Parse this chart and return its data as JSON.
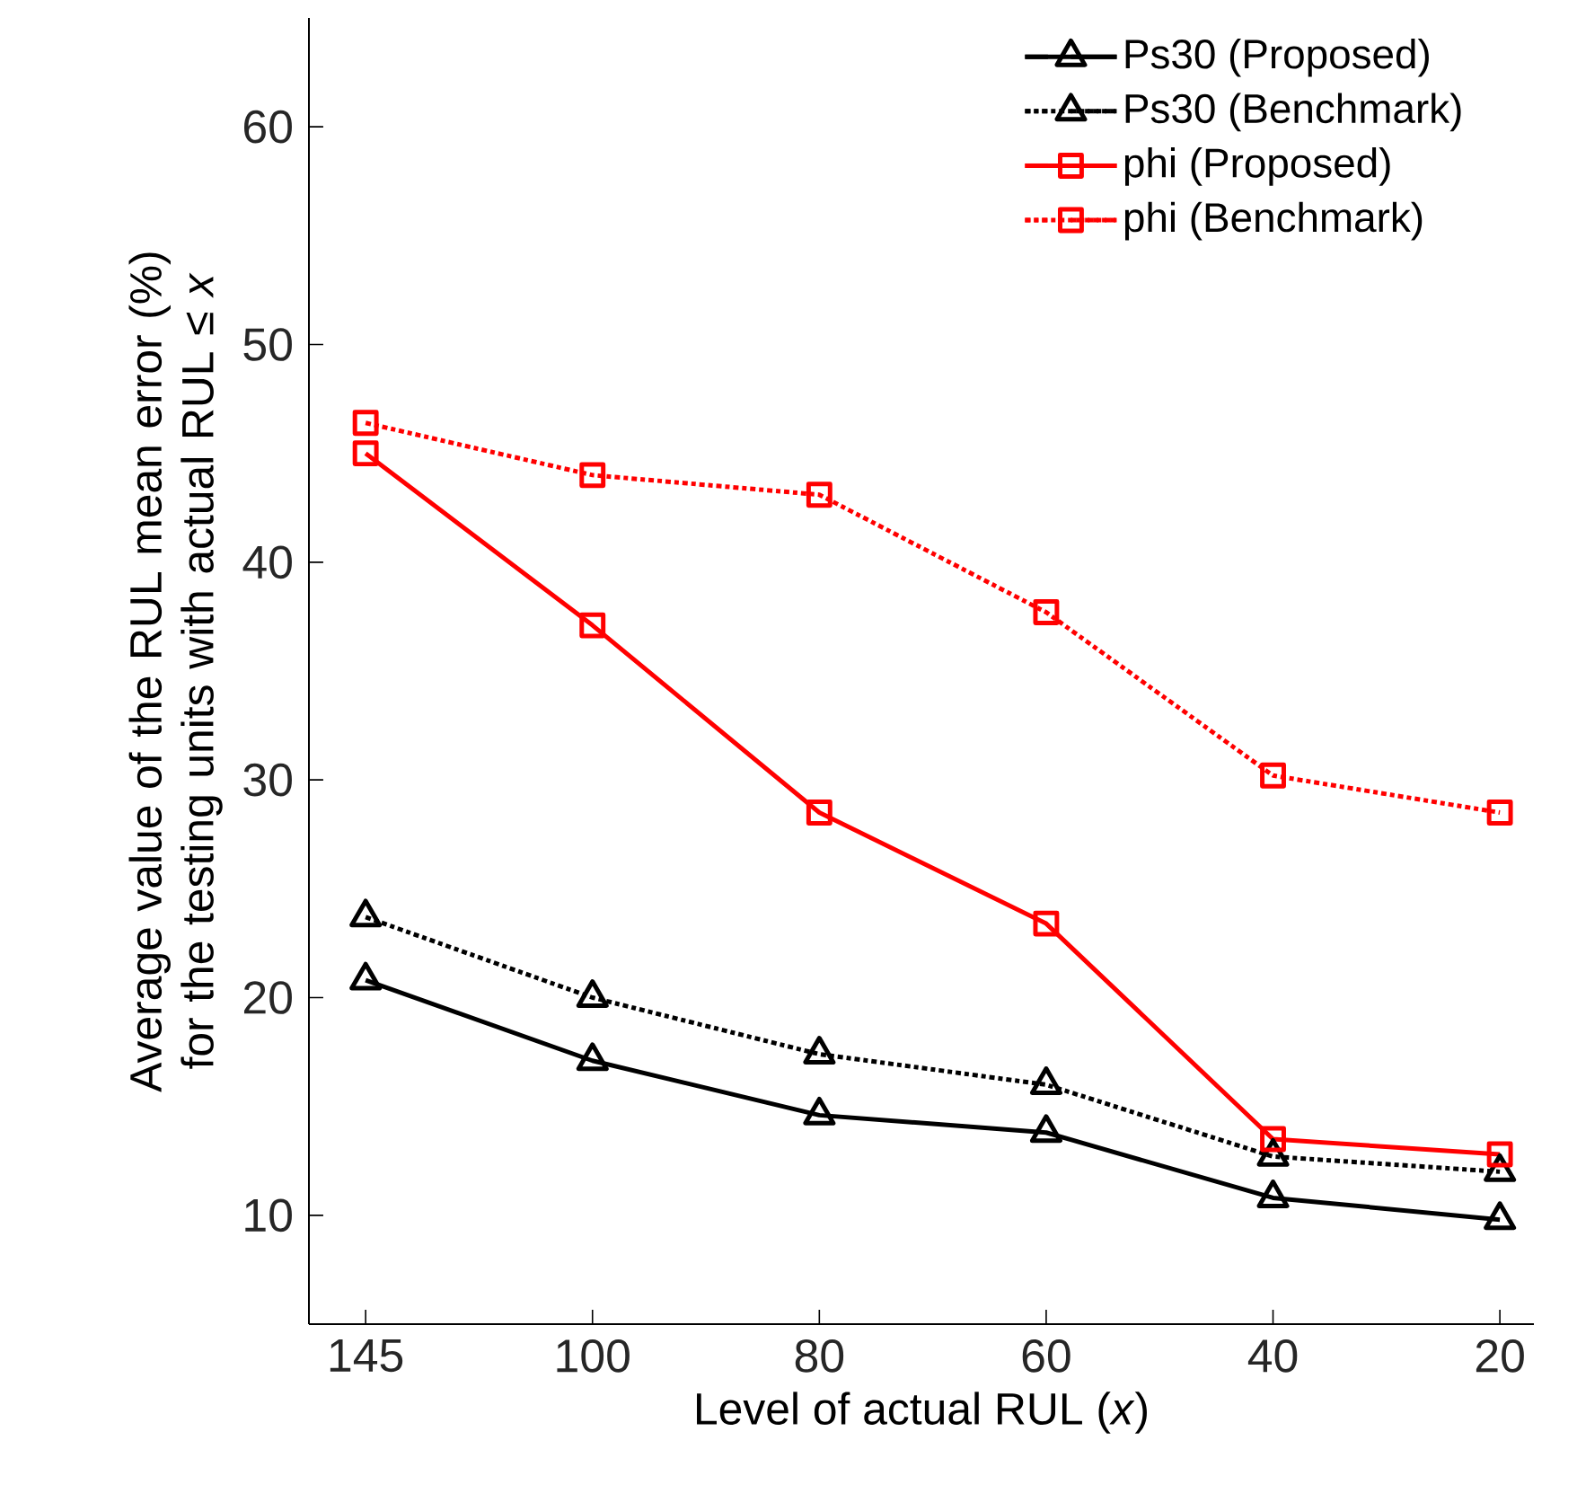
{
  "chart_data": {
    "type": "line",
    "xlabel": "Level of actual RUL (*x*)",
    "ylabel": "Average value of the RUL mean error (%) for the testing units with actual RUL ≤ *x*",
    "categories": [
      "145",
      "100",
      "80",
      "60",
      "40",
      "20"
    ],
    "series": [
      {
        "name": "Ps30 (Proposed)",
        "color": "#000000",
        "marker": "triangle",
        "line_style": "solid",
        "values": [
          20.8,
          17.1,
          14.6,
          13.8,
          10.8,
          9.8
        ]
      },
      {
        "name": "Ps30 (Benchmark)",
        "color": "#000000",
        "marker": "triangle",
        "line_style": "dashdot",
        "values": [
          23.7,
          20.0,
          17.4,
          16.0,
          12.7,
          12.0
        ]
      },
      {
        "name": "phi (Proposed)",
        "color": "#ff0000",
        "marker": "square",
        "line_style": "solid",
        "values": [
          45.0,
          37.1,
          28.5,
          23.4,
          13.5,
          12.8
        ]
      },
      {
        "name": "phi (Benchmark)",
        "color": "#ff0000",
        "marker": "square",
        "line_style": "dashdot",
        "values": [
          46.4,
          44.0,
          43.1,
          37.7,
          30.2,
          28.5
        ]
      }
    ],
    "ylim": [
      5,
      65
    ],
    "yticks": [
      10,
      20,
      30,
      40,
      50,
      60
    ],
    "legend": "top right",
    "grid": false
  }
}
